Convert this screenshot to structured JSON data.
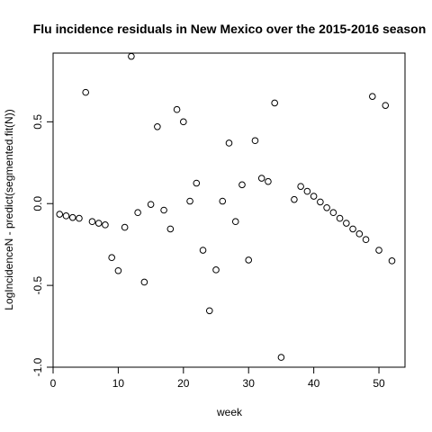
{
  "chart_data": {
    "type": "scatter",
    "title": "Flu incidence residuals in New Mexico over the 2015-2016 season",
    "xlabel": "week",
    "ylabel": "LogIncidenceN - predict(segmented.fit(N))",
    "xlim": [
      0,
      54
    ],
    "ylim": [
      -1.0,
      0.92
    ],
    "x_ticks": [
      0,
      10,
      20,
      30,
      40,
      50
    ],
    "y_ticks": [
      -1.0,
      -0.5,
      0.0,
      0.5
    ],
    "x_tick_labels": [
      "0",
      "10",
      "20",
      "30",
      "40",
      "50"
    ],
    "y_tick_labels": [
      "-1.0",
      "-0.5",
      "0.0",
      "0.5"
    ],
    "grid": false,
    "marker": "open-circle",
    "points": [
      {
        "x": 1,
        "y": -0.065
      },
      {
        "x": 2,
        "y": -0.075
      },
      {
        "x": 3,
        "y": -0.085
      },
      {
        "x": 4,
        "y": -0.09
      },
      {
        "x": 5,
        "y": 0.68
      },
      {
        "x": 6,
        "y": -0.11
      },
      {
        "x": 7,
        "y": -0.12
      },
      {
        "x": 8,
        "y": -0.13
      },
      {
        "x": 9,
        "y": -0.33
      },
      {
        "x": 10,
        "y": -0.41
      },
      {
        "x": 11,
        "y": -0.145
      },
      {
        "x": 12,
        "y": 0.9
      },
      {
        "x": 13,
        "y": -0.055
      },
      {
        "x": 14,
        "y": -0.48
      },
      {
        "x": 15,
        "y": -0.005
      },
      {
        "x": 16,
        "y": 0.47
      },
      {
        "x": 17,
        "y": -0.04
      },
      {
        "x": 18,
        "y": -0.155
      },
      {
        "x": 19,
        "y": 0.575
      },
      {
        "x": 20,
        "y": 0.5
      },
      {
        "x": 21,
        "y": 0.015
      },
      {
        "x": 22,
        "y": 0.125
      },
      {
        "x": 23,
        "y": -0.285
      },
      {
        "x": 24,
        "y": -0.655
      },
      {
        "x": 25,
        "y": -0.405
      },
      {
        "x": 26,
        "y": 0.015
      },
      {
        "x": 27,
        "y": 0.37
      },
      {
        "x": 28,
        "y": -0.11
      },
      {
        "x": 29,
        "y": 0.115
      },
      {
        "x": 30,
        "y": -0.345
      },
      {
        "x": 31,
        "y": 0.385
      },
      {
        "x": 32,
        "y": 0.155
      },
      {
        "x": 33,
        "y": 0.135
      },
      {
        "x": 34,
        "y": 0.615
      },
      {
        "x": 35,
        "y": -0.94
      },
      {
        "x": 37,
        "y": 0.025
      },
      {
        "x": 38,
        "y": 0.105
      },
      {
        "x": 39,
        "y": 0.075
      },
      {
        "x": 40,
        "y": 0.045
      },
      {
        "x": 41,
        "y": 0.01
      },
      {
        "x": 42,
        "y": -0.025
      },
      {
        "x": 43,
        "y": -0.055
      },
      {
        "x": 44,
        "y": -0.09
      },
      {
        "x": 45,
        "y": -0.12
      },
      {
        "x": 46,
        "y": -0.155
      },
      {
        "x": 47,
        "y": -0.185
      },
      {
        "x": 48,
        "y": -0.22
      },
      {
        "x": 49,
        "y": 0.655
      },
      {
        "x": 50,
        "y": -0.285
      },
      {
        "x": 51,
        "y": 0.6
      },
      {
        "x": 52,
        "y": -0.35
      }
    ]
  }
}
